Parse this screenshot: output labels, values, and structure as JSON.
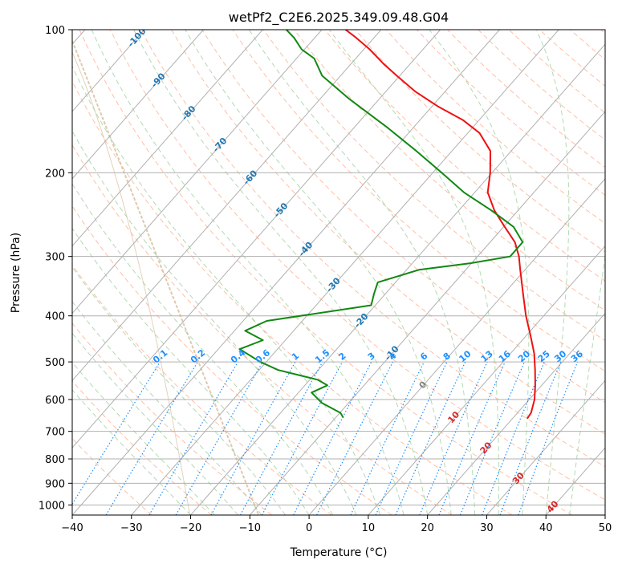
{
  "chart_data": {
    "type": "line",
    "title": "wetPf2_C2E6.2025.349.09.48.G04",
    "xlabel": "Temperature (°C)",
    "ylabel": "Pressure (hPa)",
    "xlim": [
      -40,
      50
    ],
    "ylim": [
      1050,
      100
    ],
    "x_ticks": [
      -40,
      -30,
      -20,
      -10,
      0,
      10,
      20,
      30,
      40,
      50
    ],
    "x_tick_labels": [
      "−40",
      "−30",
      "−20",
      "−10",
      "0",
      "10",
      "20",
      "30",
      "40",
      "50"
    ],
    "y_ticks": [
      100,
      200,
      300,
      400,
      500,
      600,
      700,
      800,
      900,
      1000
    ],
    "y_tick_labels": [
      "100",
      "200",
      "300",
      "400",
      "500",
      "600",
      "700",
      "800",
      "900",
      "1000"
    ],
    "y_scale": "log",
    "skew": "skew-T",
    "series": [
      {
        "name": "Temperature",
        "color": "#ee1111",
        "points": [
          [
            658,
            22.5
          ],
          [
            640,
            22.3
          ],
          [
            600,
            20.9
          ],
          [
            560,
            18.9
          ],
          [
            520,
            16.6
          ],
          [
            480,
            14.0
          ],
          [
            440,
            10.7
          ],
          [
            400,
            7.0
          ],
          [
            360,
            3.3
          ],
          [
            320,
            -0.8
          ],
          [
            300,
            -3.0
          ],
          [
            280,
            -5.8
          ],
          [
            260,
            -9.8
          ],
          [
            240,
            -14.0
          ],
          [
            220,
            -17.8
          ],
          [
            200,
            -20.3
          ],
          [
            180,
            -23.5
          ],
          [
            165,
            -28.0
          ],
          [
            155,
            -32.7
          ],
          [
            145,
            -39.0
          ],
          [
            135,
            -45.0
          ],
          [
            125,
            -50.5
          ],
          [
            118,
            -54.5
          ],
          [
            110,
            -59.0
          ],
          [
            104,
            -63.0
          ],
          [
            100,
            -66.0
          ]
        ]
      },
      {
        "name": "Dewpoint",
        "color": "#118811",
        "points": [
          [
            655,
            -8.7
          ],
          [
            640,
            -9.9
          ],
          [
            610,
            -14.5
          ],
          [
            580,
            -17.8
          ],
          [
            560,
            -16.2
          ],
          [
            545,
            -18.7
          ],
          [
            520,
            -26.8
          ],
          [
            500,
            -31.0
          ],
          [
            470,
            -36.4
          ],
          [
            450,
            -33.8
          ],
          [
            430,
            -38.2
          ],
          [
            410,
            -36.0
          ],
          [
            380,
            -20.7
          ],
          [
            360,
            -21.9
          ],
          [
            340,
            -23.0
          ],
          [
            320,
            -17.9
          ],
          [
            310,
            -10.2
          ],
          [
            300,
            -4.5
          ],
          [
            280,
            -4.5
          ],
          [
            260,
            -8.3
          ],
          [
            240,
            -14.5
          ],
          [
            220,
            -21.8
          ],
          [
            200,
            -28.5
          ],
          [
            180,
            -36.0
          ],
          [
            160,
            -44.7
          ],
          [
            140,
            -55.0
          ],
          [
            125,
            -63.1
          ],
          [
            115,
            -67.0
          ],
          [
            110,
            -70.5
          ],
          [
            104,
            -73.5
          ],
          [
            100,
            -76.0
          ]
        ]
      }
    ],
    "isotherm_labels": [
      "-100",
      "-90",
      "-80",
      "-70",
      "-60",
      "-50",
      "-40",
      "-30",
      "-20",
      "-10",
      "0",
      "10",
      "20",
      "30",
      "40"
    ],
    "mixing_ratio_labels": [
      "0.1",
      "0.2",
      "0.4",
      "0.6",
      "1",
      "1.5",
      "2",
      "3",
      "4",
      "6",
      "8",
      "10",
      "13",
      "16",
      "20",
      "25",
      "30",
      "36"
    ],
    "mixing_ratio_values": [
      0.1,
      0.2,
      0.4,
      0.6,
      1,
      1.5,
      2,
      3,
      4,
      6,
      8,
      10,
      13,
      16,
      20,
      25,
      30,
      36
    ],
    "grid": true,
    "colors": {
      "isotherm_cold_label": "#1f77b4",
      "isotherm_zero_label": "#808080",
      "isotherm_warm_label": "#d62728",
      "mixing_ratio_line": "#1e90ff",
      "dry_adiabat": "#ffaa88",
      "moist_adiabat": "#99cc99",
      "reference_curve": "#d2b48c",
      "grid": "#b0b0b0"
    }
  }
}
